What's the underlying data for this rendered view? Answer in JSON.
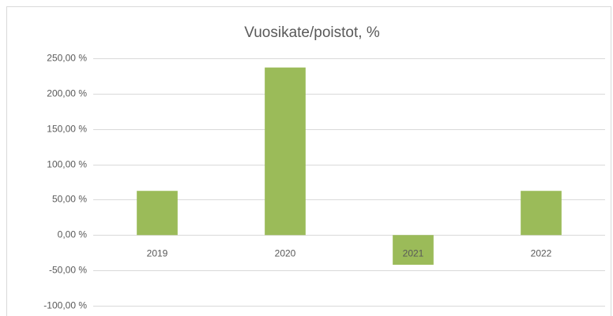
{
  "chart_data": {
    "type": "bar",
    "title": "Vuosikate/poistot, %",
    "categories": [
      "2019",
      "2020",
      "2021",
      "2022"
    ],
    "values": [
      62.5,
      237,
      -42,
      62.5
    ],
    "color": "#9bbb59",
    "ylim": [
      -100,
      250
    ],
    "yticks": [
      {
        "value": -100,
        "label": "-100,00 %"
      },
      {
        "value": -50,
        "label": "-50,00 %"
      },
      {
        "value": 0,
        "label": "0,00 %"
      },
      {
        "value": 50,
        "label": "50,00 %"
      },
      {
        "value": 100,
        "label": "100,00 %"
      },
      {
        "value": 150,
        "label": "150,00 %"
      },
      {
        "value": 200,
        "label": "200,00 %"
      },
      {
        "value": 250,
        "label": "250,00 %"
      }
    ],
    "grid": true
  }
}
